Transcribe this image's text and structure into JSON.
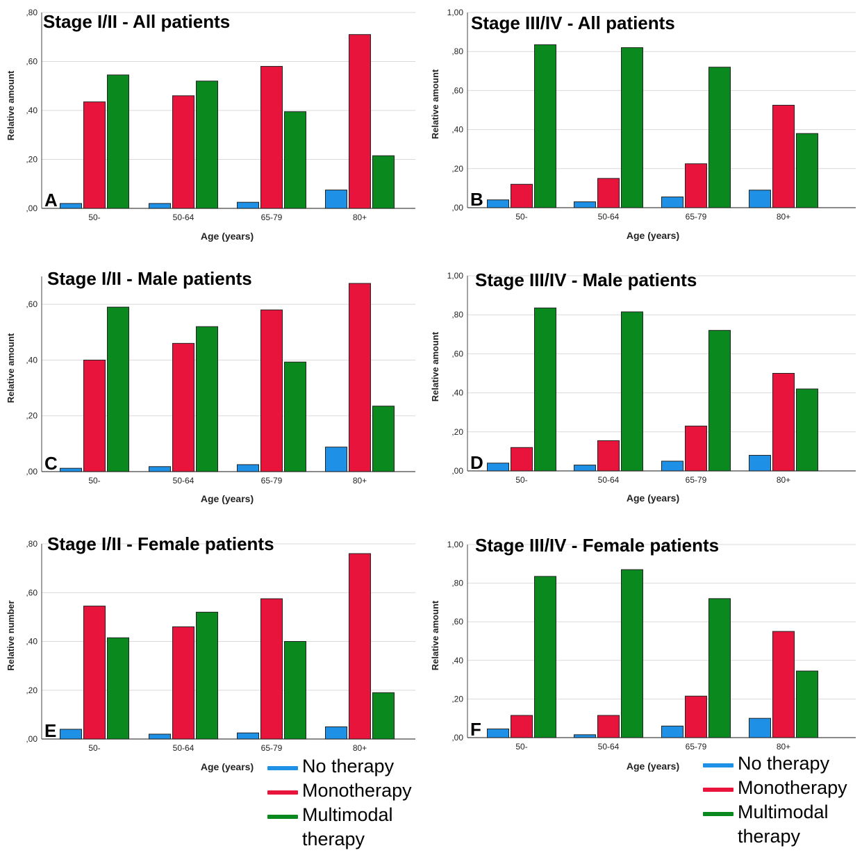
{
  "colors": {
    "no_therapy": "#1e90e6",
    "monotherapy": "#e8143c",
    "multimodal": "#0a8a1e"
  },
  "legend": [
    {
      "label": "No therapy",
      "color_key": "no_therapy"
    },
    {
      "label": "Monotherapy",
      "color_key": "monotherapy"
    },
    {
      "label": "Multimodal therapy",
      "color_key": "multimodal"
    }
  ],
  "chart_data": [
    {
      "type": "bar",
      "panel_letter": "A",
      "title": "Stage I/II  - All patients",
      "xlabel": "Age (years)",
      "ylabel": "Relative amount",
      "categories": [
        "50-",
        "50-64",
        "65-79",
        "80+"
      ],
      "ylim": [
        0,
        0.8
      ],
      "yticks": [
        ",00",
        ",20",
        ",40",
        ",60",
        ",80"
      ],
      "series": [
        {
          "name": "No therapy",
          "values": [
            0.02,
            0.02,
            0.025,
            0.075
          ]
        },
        {
          "name": "Monotherapy",
          "values": [
            0.435,
            0.46,
            0.58,
            0.71
          ]
        },
        {
          "name": "Multimodal therapy",
          "values": [
            0.545,
            0.52,
            0.395,
            0.215
          ]
        }
      ]
    },
    {
      "type": "bar",
      "panel_letter": "B",
      "title": "Stage III/IV - All patients",
      "xlabel": "Age (years)",
      "ylabel": "Relative amount",
      "categories": [
        "50-",
        "50-64",
        "65-79",
        "80+"
      ],
      "ylim": [
        0,
        1.0
      ],
      "yticks": [
        ",00",
        ",20",
        ",40",
        ",60",
        ",80",
        "1,00"
      ],
      "series": [
        {
          "name": "No therapy",
          "values": [
            0.04,
            0.03,
            0.055,
            0.09
          ]
        },
        {
          "name": "Monotherapy",
          "values": [
            0.12,
            0.15,
            0.225,
            0.525
          ]
        },
        {
          "name": "Multimodal therapy",
          "values": [
            0.835,
            0.82,
            0.72,
            0.38
          ]
        }
      ]
    },
    {
      "type": "bar",
      "panel_letter": "C",
      "title": "Stage I/II - Male patients",
      "xlabel": "Age (years)",
      "ylabel": "Relative amount",
      "categories": [
        "50-",
        "50-64",
        "65-79",
        "80+"
      ],
      "ylim": [
        0,
        0.7
      ],
      "yticks": [
        ",00",
        ",20",
        ",40",
        ",60"
      ],
      "series": [
        {
          "name": "No therapy",
          "values": [
            0.012,
            0.018,
            0.025,
            0.088
          ]
        },
        {
          "name": "Monotherapy",
          "values": [
            0.4,
            0.46,
            0.58,
            0.675
          ]
        },
        {
          "name": "Multimodal therapy",
          "values": [
            0.59,
            0.52,
            0.393,
            0.235
          ]
        }
      ]
    },
    {
      "type": "bar",
      "panel_letter": "D",
      "title": "Stage III/IV - Male patients",
      "xlabel": "Age (years)",
      "ylabel": "Relative amount",
      "categories": [
        "50-",
        "50-64",
        "65-79",
        "80+"
      ],
      "ylim": [
        0,
        1.0
      ],
      "yticks": [
        ",00",
        ",20",
        ",40",
        ",60",
        ",80",
        "1,00"
      ],
      "series": [
        {
          "name": "No therapy",
          "values": [
            0.04,
            0.03,
            0.05,
            0.08
          ]
        },
        {
          "name": "Monotherapy",
          "values": [
            0.12,
            0.155,
            0.23,
            0.5
          ]
        },
        {
          "name": "Multimodal therapy",
          "values": [
            0.835,
            0.815,
            0.72,
            0.42
          ]
        }
      ]
    },
    {
      "type": "bar",
      "panel_letter": "E",
      "title": "Stage I/II - Female patients",
      "xlabel": "Age (years)",
      "ylabel": "Relative number",
      "categories": [
        "50-",
        "50-64",
        "65-79",
        "80+"
      ],
      "ylim": [
        0,
        0.8
      ],
      "yticks": [
        ",00",
        ",20",
        ",40",
        ",60",
        ",80"
      ],
      "series": [
        {
          "name": "No therapy",
          "values": [
            0.04,
            0.02,
            0.025,
            0.05
          ]
        },
        {
          "name": "Monotherapy",
          "values": [
            0.545,
            0.46,
            0.575,
            0.76
          ]
        },
        {
          "name": "Multimodal therapy",
          "values": [
            0.415,
            0.52,
            0.4,
            0.19
          ]
        }
      ]
    },
    {
      "type": "bar",
      "panel_letter": "F",
      "title": "Stage III/IV - Female patients",
      "xlabel": "Age (years)",
      "ylabel": "Relative amount",
      "categories": [
        "50-",
        "50-64",
        "65-79",
        "80+"
      ],
      "ylim": [
        0,
        1.0
      ],
      "yticks": [
        ",00",
        ",20",
        ",40",
        ",60",
        ",80",
        "1,00"
      ],
      "series": [
        {
          "name": "No therapy",
          "values": [
            0.045,
            0.015,
            0.06,
            0.1
          ]
        },
        {
          "name": "Monotherapy",
          "values": [
            0.115,
            0.115,
            0.215,
            0.55
          ]
        },
        {
          "name": "Multimodal therapy",
          "values": [
            0.835,
            0.87,
            0.72,
            0.345
          ]
        }
      ]
    }
  ]
}
